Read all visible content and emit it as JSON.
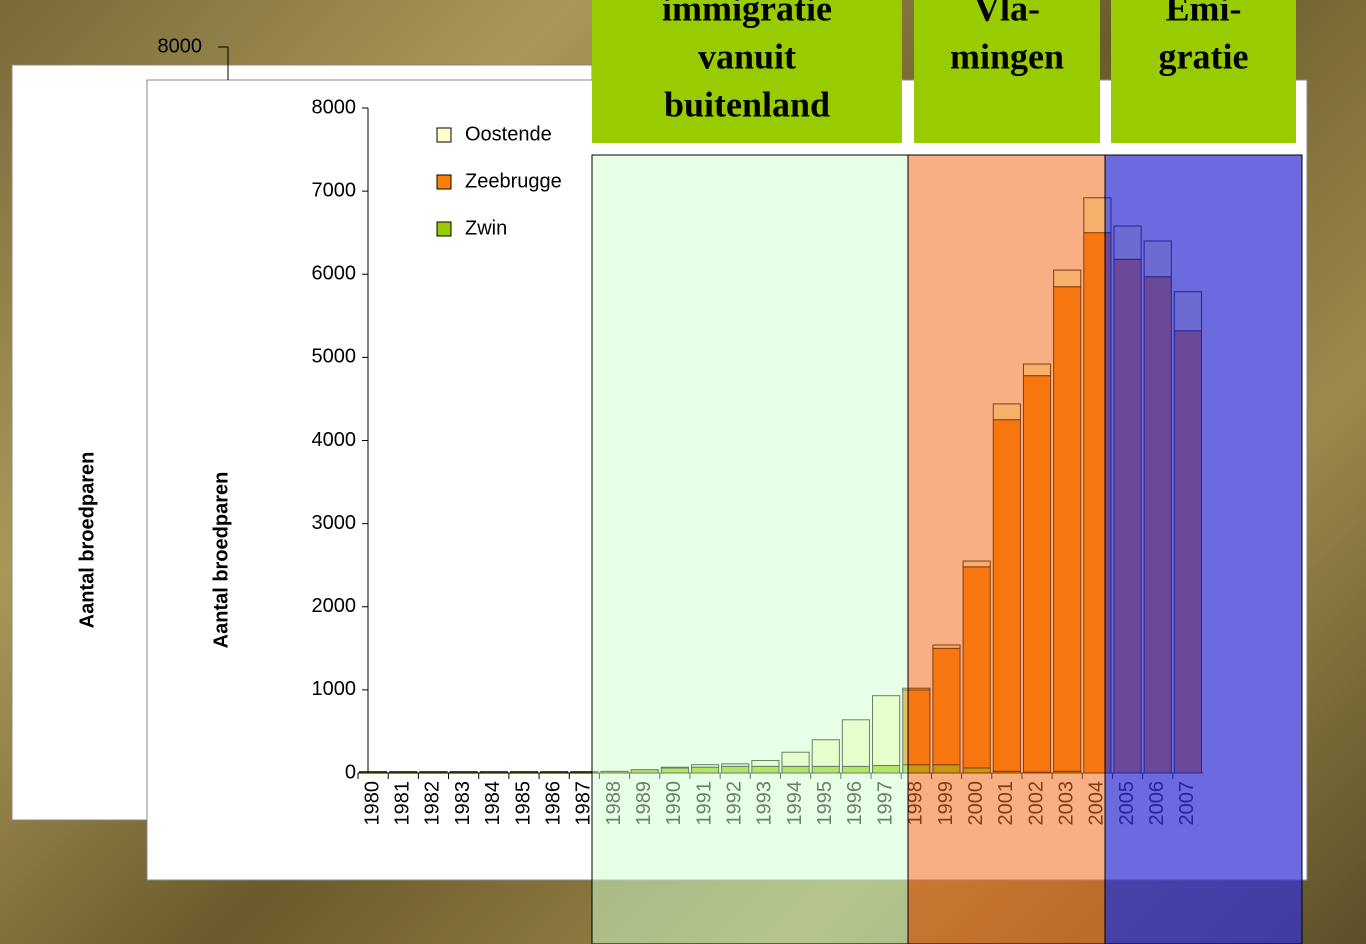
{
  "background_chart": {
    "ylabel": "Aantal broedparen",
    "yticks": [
      8000
    ]
  },
  "chart_data": {
    "type": "bar",
    "stacked": true,
    "ylabel": "Aantal broedparen",
    "categories": [
      "1980",
      "1981",
      "1982",
      "1983",
      "1984",
      "1985",
      "1986",
      "1987",
      "1988",
      "1989",
      "1990",
      "1991",
      "1992",
      "1993",
      "1994",
      "1995",
      "1996",
      "1997",
      "1998",
      "1999",
      "2000",
      "2001",
      "2002",
      "2003",
      "2004",
      "2005",
      "2006",
      "2007"
    ],
    "series": [
      {
        "name": "Zwin",
        "color": "#99cc00",
        "values": [
          15,
          15,
          15,
          15,
          15,
          15,
          15,
          15,
          20,
          40,
          60,
          70,
          80,
          80,
          80,
          80,
          80,
          90,
          100,
          100,
          60,
          20,
          10,
          20,
          0,
          0,
          0,
          0
        ]
      },
      {
        "name": "Zeebrugge",
        "color": "#ff8000",
        "values": [
          0,
          0,
          0,
          0,
          0,
          0,
          0,
          0,
          0,
          0,
          0,
          0,
          0,
          0,
          0,
          0,
          0,
          0,
          900,
          1400,
          2420,
          4230,
          4770,
          5830,
          6500,
          6180,
          5970,
          5320
        ]
      },
      {
        "name": "Oostende",
        "color": "#ffffcc",
        "values": [
          0,
          0,
          0,
          0,
          0,
          0,
          0,
          0,
          0,
          0,
          10,
          30,
          30,
          70,
          170,
          320,
          560,
          840,
          20,
          40,
          70,
          190,
          140,
          200,
          420,
          400,
          430,
          470
        ]
      }
    ],
    "ylim": [
      0,
      8000
    ],
    "yticks": [
      0,
      1000,
      2000,
      3000,
      4000,
      5000,
      6000,
      7000,
      8000
    ]
  },
  "periods": [
    {
      "lines": [
        "immigratie",
        "vanuit",
        "buitenland"
      ]
    },
    {
      "lines": [
        "Vla-",
        "mingen"
      ]
    },
    {
      "lines": [
        "Emi-",
        "gratie"
      ]
    }
  ]
}
